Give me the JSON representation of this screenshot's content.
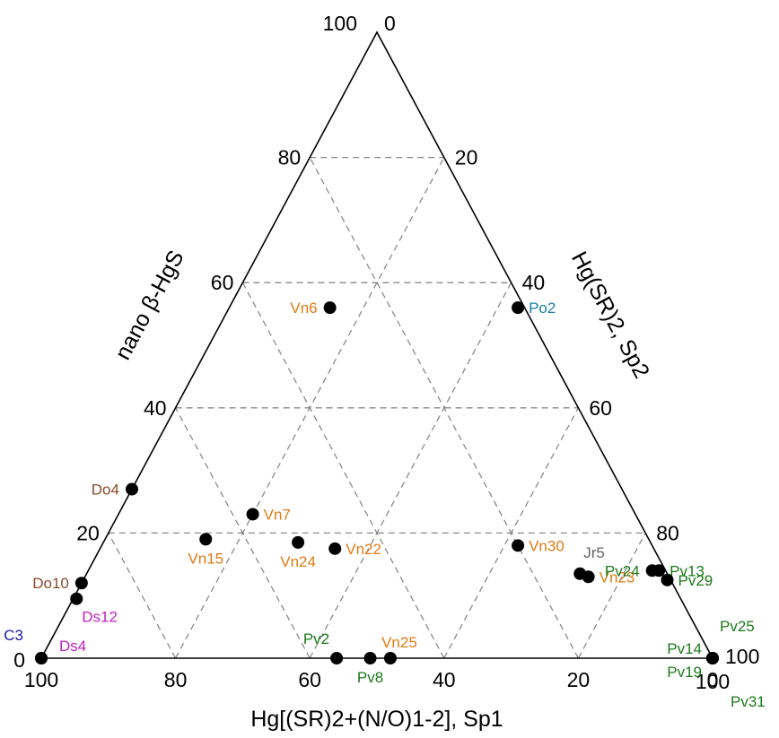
{
  "chart_data": {
    "type": "scatter",
    "subtype": "ternary",
    "axes": {
      "bottom": {
        "title": "Hg[(SR)2+(N/O)1-2], Sp1",
        "ticks": [
          "100",
          "80",
          "60",
          "40",
          "20",
          "0"
        ]
      },
      "left": {
        "title": "nano β-HgS",
        "ticks": [
          "0",
          "20",
          "40",
          "60",
          "80",
          "100"
        ]
      },
      "right": {
        "title": "Hg(SR)2, Sp2",
        "ticks": [
          "0",
          "20",
          "40",
          "60",
          "80",
          "100"
        ]
      }
    },
    "grid": true,
    "colors": {
      "orange": "#e07b14",
      "green": "#1b7a1b",
      "brown": "#8b4a2b",
      "magenta": "#c020c0",
      "navy": "#1a1aa8",
      "teal": "#1a7fa0",
      "gray": "#666666"
    },
    "points": [
      {
        "name": "Vn6",
        "beta": 56,
        "sp2": 15,
        "color": "orange",
        "label_pos": "left"
      },
      {
        "name": "Po2",
        "beta": 56,
        "sp2": 43,
        "color": "teal",
        "label_pos": "right"
      },
      {
        "name": "Vn30",
        "beta": 18,
        "sp2": 62,
        "color": "orange",
        "label_pos": "right"
      },
      {
        "name": "Jr5",
        "beta": 13.5,
        "sp2": 73.5,
        "color": "gray",
        "label_pos": "above-right"
      },
      {
        "name": "Vn23",
        "beta": 13,
        "sp2": 75,
        "color": "orange",
        "label_pos": "right"
      },
      {
        "name": "Do4",
        "beta": 27,
        "sp2": 0,
        "color": "brown",
        "label_pos": "left"
      },
      {
        "name": "Vn7",
        "beta": 23,
        "sp2": 20,
        "color": "orange",
        "label_pos": "right"
      },
      {
        "name": "Vn15",
        "beta": 19,
        "sp2": 15,
        "color": "orange",
        "label_pos": "below"
      },
      {
        "name": "Vn24",
        "beta": 18.5,
        "sp2": 29,
        "color": "orange",
        "label_pos": "below"
      },
      {
        "name": "Vn22",
        "beta": 17.5,
        "sp2": 35,
        "color": "orange",
        "label_pos": "right"
      },
      {
        "name": "Pv13",
        "beta": 14,
        "sp2": 85,
        "color": "green",
        "label_pos": "right"
      },
      {
        "name": "Pv24",
        "beta": 14,
        "sp2": 84,
        "color": "green",
        "label_pos": "left"
      },
      {
        "name": "Pv29",
        "beta": 12.5,
        "sp2": 87,
        "color": "green",
        "label_pos": "right"
      },
      {
        "name": "Do10",
        "beta": 12,
        "sp2": 0,
        "color": "brown",
        "label_pos": "left"
      },
      {
        "name": "Ds12",
        "beta": 9.5,
        "sp2": 0.5,
        "color": "magenta",
        "label_pos": "below-right"
      },
      {
        "name": "C3",
        "beta": 0,
        "sp2": 0,
        "color": "navy",
        "label_pos": "above-left"
      },
      {
        "name": "Ds4",
        "beta": 0,
        "sp2": 0,
        "color": "magenta",
        "label_pos": "above-right"
      },
      {
        "name": "Pv2",
        "beta": 0,
        "sp2": 44,
        "color": "green",
        "label_pos": "above-left"
      },
      {
        "name": "Pv8",
        "beta": 0,
        "sp2": 49,
        "color": "green",
        "label_pos": "below"
      },
      {
        "name": "Vn25",
        "beta": 0,
        "sp2": 52,
        "color": "orange",
        "label_pos": "above"
      },
      {
        "name": "Pv25",
        "beta": 0,
        "sp2": 100,
        "color": "green",
        "label_pos": "top-right"
      },
      {
        "name": "Pv14",
        "beta": 0,
        "sp2": 100,
        "color": "green",
        "label_pos": "left-up"
      },
      {
        "name": "Pv19",
        "beta": 0,
        "sp2": 100,
        "color": "green",
        "label_pos": "left-down"
      },
      {
        "name": "Pv31",
        "beta": 0,
        "sp2": 100,
        "color": "green",
        "label_pos": "bottom-right"
      }
    ]
  }
}
